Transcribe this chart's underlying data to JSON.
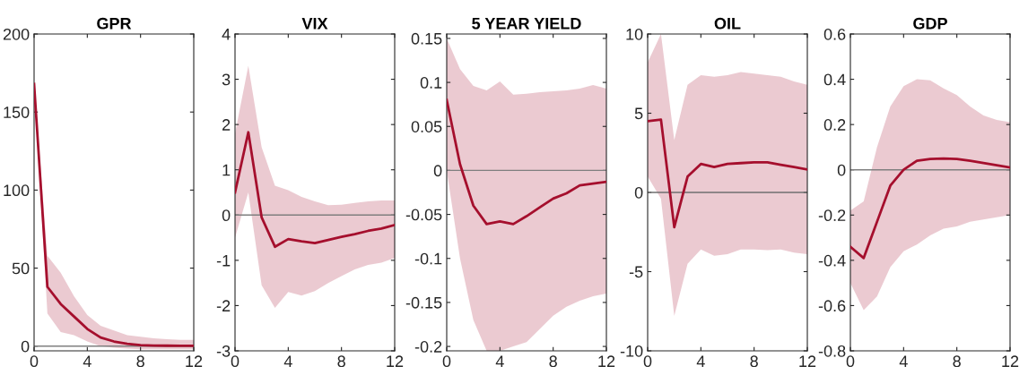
{
  "chart_data": [
    {
      "type": "line",
      "title": "GPR",
      "x": [
        0,
        1,
        2,
        3,
        4,
        5,
        6,
        7,
        8,
        9,
        10,
        11,
        12
      ],
      "xlim": [
        0,
        12
      ],
      "xticks": [
        0,
        4,
        8,
        12
      ],
      "ylim": [
        -3,
        200
      ],
      "yticks": [
        0,
        50,
        100,
        150,
        200
      ],
      "ref_lines": [
        {
          "axis": "y",
          "value": 0,
          "color": "#7f7f7f"
        }
      ],
      "series": [
        {
          "color": "#a50f2d",
          "values": [
            168,
            38,
            27,
            19,
            11,
            5.5,
            3,
            1.5,
            0.7,
            0.4,
            0.3,
            0.2,
            0.2
          ],
          "lower": [
            168,
            21,
            9,
            7,
            3,
            0,
            -1,
            -1.5,
            -2,
            -2,
            -2,
            -2,
            -2
          ],
          "upper": [
            168,
            58,
            47,
            32,
            20,
            13,
            10,
            7,
            6,
            5,
            4.5,
            4,
            4
          ]
        }
      ]
    },
    {
      "type": "line",
      "title": "VIX",
      "x": [
        0,
        1,
        2,
        3,
        4,
        5,
        6,
        7,
        8,
        9,
        10,
        11,
        12
      ],
      "xlim": [
        0,
        12
      ],
      "xticks": [
        0,
        4,
        8,
        12
      ],
      "ylim": [
        -3,
        4
      ],
      "yticks": [
        -3,
        -2,
        -1,
        0,
        1,
        2,
        3,
        4
      ],
      "ref_lines": [
        {
          "axis": "y",
          "value": 0,
          "color": "#7f7f7f"
        }
      ],
      "series": [
        {
          "color": "#a50f2d",
          "values": [
            0.5,
            1.83,
            -0.05,
            -0.7,
            -0.53,
            -0.58,
            -0.62,
            -0.55,
            -0.48,
            -0.42,
            -0.35,
            -0.3,
            -0.22
          ],
          "lower": [
            -0.5,
            0.5,
            -1.55,
            -2.05,
            -1.7,
            -1.78,
            -1.68,
            -1.5,
            -1.35,
            -1.2,
            -1.1,
            -1.05,
            -0.95
          ],
          "upper": [
            1.8,
            3.3,
            1.5,
            0.65,
            0.55,
            0.4,
            0.3,
            0.22,
            0.23,
            0.27,
            0.3,
            0.32,
            0.32
          ]
        }
      ]
    },
    {
      "type": "line",
      "title": "5 YEAR YIELD",
      "x": [
        0,
        1,
        2,
        3,
        4,
        5,
        6,
        7,
        8,
        9,
        10,
        11,
        12
      ],
      "xlim": [
        0,
        12
      ],
      "xticks": [
        0,
        4,
        8,
        12
      ],
      "ylim": [
        -0.205,
        0.155
      ],
      "yticks": [
        -0.2,
        -0.15,
        -0.1,
        -0.05,
        0,
        0.05,
        0.1,
        0.15
      ],
      "ref_lines": [
        {
          "axis": "y",
          "value": 0,
          "color": "#7f7f7f"
        }
      ],
      "series": [
        {
          "color": "#a50f2d",
          "values": [
            0.08,
            0.007,
            -0.04,
            -0.061,
            -0.058,
            -0.061,
            -0.052,
            -0.042,
            -0.032,
            -0.026,
            -0.017,
            -0.015,
            -0.013
          ],
          "lower": [
            0.0,
            -0.1,
            -0.17,
            -0.205,
            -0.205,
            -0.2,
            -0.195,
            -0.18,
            -0.165,
            -0.155,
            -0.148,
            -0.143,
            -0.14
          ],
          "upper": [
            0.15,
            0.115,
            0.096,
            0.091,
            0.101,
            0.086,
            0.087,
            0.089,
            0.09,
            0.091,
            0.093,
            0.097,
            0.093
          ]
        }
      ]
    },
    {
      "type": "line",
      "title": "OIL",
      "x": [
        0,
        1,
        2,
        3,
        4,
        5,
        6,
        7,
        8,
        9,
        10,
        11,
        12
      ],
      "xlim": [
        0,
        12
      ],
      "xticks": [
        0,
        4,
        8,
        12
      ],
      "ylim": [
        -10,
        10
      ],
      "yticks": [
        -10,
        -5,
        0,
        5,
        10
      ],
      "ref_lines": [
        {
          "axis": "y",
          "value": 0,
          "color": "#6f6f6f"
        }
      ],
      "series": [
        {
          "color": "#a50f2d",
          "values": [
            4.5,
            4.6,
            -2.2,
            1.0,
            1.8,
            1.6,
            1.8,
            1.85,
            1.9,
            1.9,
            1.75,
            1.6,
            1.45
          ],
          "lower": [
            1.0,
            -0.4,
            -7.8,
            -4.5,
            -3.6,
            -4.0,
            -3.9,
            -3.6,
            -3.6,
            -3.65,
            -3.6,
            -3.8,
            -3.9
          ],
          "upper": [
            8.2,
            10,
            3.3,
            6.8,
            7.4,
            7.3,
            7.4,
            7.6,
            7.5,
            7.4,
            7.3,
            7.0,
            6.8
          ]
        }
      ]
    },
    {
      "type": "line",
      "title": "GDP",
      "x": [
        0,
        1,
        2,
        3,
        4,
        5,
        6,
        7,
        8,
        9,
        10,
        11,
        12
      ],
      "xlim": [
        0,
        12
      ],
      "xticks": [
        0,
        4,
        8,
        12
      ],
      "ylim": [
        -0.8,
        0.6
      ],
      "yticks": [
        -0.8,
        -0.6,
        -0.4,
        -0.2,
        0,
        0.2,
        0.4,
        0.6
      ],
      "ref_lines": [
        {
          "axis": "y",
          "value": 0,
          "color": "#7f7f7f"
        }
      ],
      "series": [
        {
          "color": "#a50f2d",
          "values": [
            -0.34,
            -0.39,
            -0.23,
            -0.07,
            0.0,
            0.04,
            0.048,
            0.05,
            0.048,
            0.04,
            0.03,
            0.02,
            0.01
          ],
          "lower": [
            -0.5,
            -0.62,
            -0.56,
            -0.43,
            -0.36,
            -0.33,
            -0.29,
            -0.26,
            -0.25,
            -0.23,
            -0.22,
            -0.21,
            -0.2
          ],
          "upper": [
            -0.18,
            -0.14,
            0.1,
            0.28,
            0.37,
            0.4,
            0.395,
            0.36,
            0.33,
            0.28,
            0.24,
            0.22,
            0.21
          ]
        }
      ]
    }
  ]
}
